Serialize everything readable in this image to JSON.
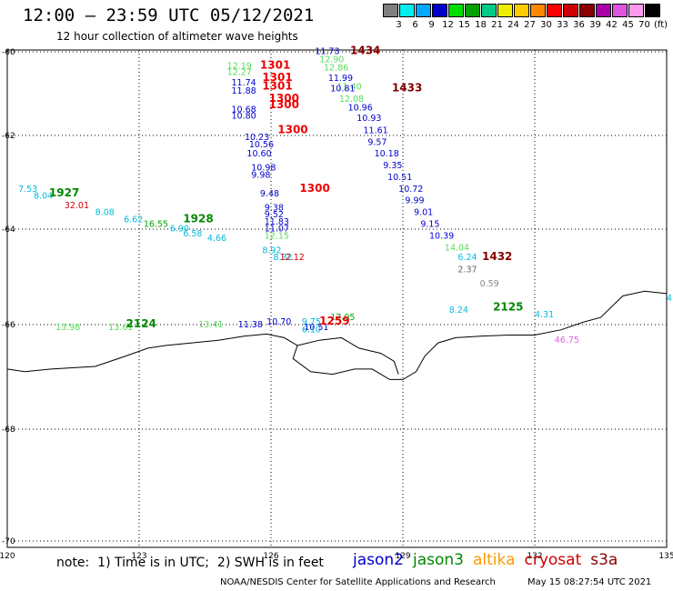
{
  "title": "12:00 – 23:59 UTC 05/12/2021",
  "subtitle": "12 hour collection of altimeter wave heights",
  "colorbar": {
    "labels": [
      "3",
      "6",
      "9",
      "12",
      "15",
      "18",
      "21",
      "24",
      "27",
      "30",
      "33",
      "36",
      "39",
      "42",
      "45",
      "70",
      "(ft)"
    ],
    "colors": [
      "#7f7f7f",
      "#00eeee",
      "#00a8ff",
      "#0000cc",
      "#00dd00",
      "#00a000",
      "#00cc88",
      "#eeee00",
      "#ffcc00",
      "#ff8800",
      "#ff0000",
      "#cc0000",
      "#880000",
      "#aa00aa",
      "#dd55dd",
      "#ff99ee",
      "#000000"
    ]
  },
  "note": "note:  1) Time is in UTC;  2) SWH is in feet",
  "legend": [
    {
      "label": "jason2",
      "color": "#0000cc"
    },
    {
      "label": "jason3",
      "color": "#008800"
    },
    {
      "label": "altika",
      "color": "#ff9900"
    },
    {
      "label": "cryosat",
      "color": "#cc0000"
    },
    {
      "label": "s3a",
      "color": "#880000"
    }
  ],
  "credit": "NOAA/NESDIS Center for Satellite Applications and Research",
  "generated": "May 15 08:27:54 UTC 2021",
  "chart_data": {
    "type": "scatter",
    "xlim": [
      120,
      135
    ],
    "ylim": [
      -70,
      -60
    ],
    "x_ticks": [
      "120",
      "123",
      "126",
      "129",
      "132",
      "135"
    ],
    "y_ticks": [
      "-60",
      "-62",
      "-64",
      "-66",
      "-68",
      "-70"
    ],
    "grid": true,
    "points": [
      {
        "lon": 127.0,
        "lat": -60.05,
        "v": "11.73",
        "c": "#0000cc"
      },
      {
        "lon": 127.1,
        "lat": -60.25,
        "v": "12.90",
        "c": "#55dd55"
      },
      {
        "lon": 127.2,
        "lat": -60.45,
        "v": "12.86",
        "c": "#55dd55"
      },
      {
        "lon": 127.3,
        "lat": -60.7,
        "v": "11.99",
        "c": "#0000cc"
      },
      {
        "lon": 127.5,
        "lat": -60.9,
        "v": "11.40",
        "c": "#55dd55"
      },
      {
        "lon": 127.35,
        "lat": -60.95,
        "v": "10.81",
        "c": "#0000cc"
      },
      {
        "lon": 127.55,
        "lat": -61.2,
        "v": "12.08",
        "c": "#55dd55"
      },
      {
        "lon": 127.75,
        "lat": -61.4,
        "v": "10.96",
        "c": "#0000cc"
      },
      {
        "lon": 127.95,
        "lat": -61.65,
        "v": "10.93",
        "c": "#0000cc"
      },
      {
        "lon": 128.1,
        "lat": -61.95,
        "v": "11.61",
        "c": "#0000cc"
      },
      {
        "lon": 128.2,
        "lat": -62.2,
        "v": "9.57",
        "c": "#0000cc"
      },
      {
        "lon": 128.35,
        "lat": -62.45,
        "v": "10.18",
        "c": "#0000cc"
      },
      {
        "lon": 128.55,
        "lat": -62.7,
        "v": "9.35",
        "c": "#0000cc"
      },
      {
        "lon": 128.65,
        "lat": -62.95,
        "v": "10.51",
        "c": "#0000cc"
      },
      {
        "lon": 128.9,
        "lat": -63.2,
        "v": "10.72",
        "c": "#0000cc"
      },
      {
        "lon": 129.05,
        "lat": -63.45,
        "v": "9.99",
        "c": "#0000cc"
      },
      {
        "lon": 129.25,
        "lat": -63.7,
        "v": "9.01",
        "c": "#0000cc"
      },
      {
        "lon": 129.4,
        "lat": -63.95,
        "v": "9.15",
        "c": "#0000cc"
      },
      {
        "lon": 129.6,
        "lat": -64.2,
        "v": "10.39",
        "c": "#0000cc"
      },
      {
        "lon": 129.95,
        "lat": -64.45,
        "v": "14.04",
        "c": "#55dd55"
      },
      {
        "lon": 130.25,
        "lat": -64.65,
        "v": "6.24",
        "c": "#00bbdd"
      },
      {
        "lon": 130.25,
        "lat": -64.9,
        "v": "2.37",
        "c": "#666666"
      },
      {
        "lon": 130.75,
        "lat": -65.2,
        "v": "0.59",
        "c": "#888888"
      },
      {
        "lon": 125.0,
        "lat": -60.4,
        "v": "12.19",
        "c": "#55dd55"
      },
      {
        "lon": 125.0,
        "lat": -60.55,
        "v": "12.27",
        "c": "#55dd55"
      },
      {
        "lon": 125.1,
        "lat": -60.8,
        "v": "11.74",
        "c": "#0000cc"
      },
      {
        "lon": 125.1,
        "lat": -61.0,
        "v": "11.88",
        "c": "#0000cc"
      },
      {
        "lon": 125.1,
        "lat": -61.45,
        "v": "10.68",
        "c": "#0000cc"
      },
      {
        "lon": 125.1,
        "lat": -61.6,
        "v": "10.80",
        "c": "#0000cc"
      },
      {
        "lon": 125.4,
        "lat": -62.1,
        "v": "10.23",
        "c": "#0000cc"
      },
      {
        "lon": 125.5,
        "lat": -62.25,
        "v": "10.56",
        "c": "#0000cc"
      },
      {
        "lon": 125.45,
        "lat": -62.45,
        "v": "10.60",
        "c": "#0000cc"
      },
      {
        "lon": 125.55,
        "lat": -62.75,
        "v": "10.98",
        "c": "#0000cc"
      },
      {
        "lon": 125.55,
        "lat": -62.9,
        "v": "9.98",
        "c": "#0000cc"
      },
      {
        "lon": 125.75,
        "lat": -63.3,
        "v": "9.48",
        "c": "#0000cc"
      },
      {
        "lon": 125.85,
        "lat": -63.6,
        "v": "9.38",
        "c": "#0000cc"
      },
      {
        "lon": 125.85,
        "lat": -63.75,
        "v": "9.52",
        "c": "#0000cc"
      },
      {
        "lon": 125.85,
        "lat": -63.9,
        "v": "11.83",
        "c": "#0000cc"
      },
      {
        "lon": 125.85,
        "lat": -64.05,
        "v": "11.07",
        "c": "#0000cc"
      },
      {
        "lon": 125.85,
        "lat": -64.2,
        "v": "12.15",
        "c": "#55dd55"
      },
      {
        "lon": 125.8,
        "lat": -64.5,
        "v": "8.92",
        "c": "#00bbdd"
      },
      {
        "lon": 126.05,
        "lat": -64.65,
        "v": "8.32",
        "c": "#00bbdd"
      },
      {
        "lon": 126.2,
        "lat": -64.65,
        "v": "12.12",
        "c": "#cc0000"
      },
      {
        "lon": 120.25,
        "lat": -63.2,
        "v": "7.53",
        "c": "#00bbdd"
      },
      {
        "lon": 120.6,
        "lat": -63.35,
        "v": "8.04",
        "c": "#00bbdd"
      },
      {
        "lon": 121.3,
        "lat": -63.55,
        "v": "32.01",
        "c": "#cc0000"
      },
      {
        "lon": 122.0,
        "lat": -63.7,
        "v": "8.08",
        "c": "#00bbdd"
      },
      {
        "lon": 122.65,
        "lat": -63.85,
        "v": "6.62",
        "c": "#00bbdd"
      },
      {
        "lon": 123.1,
        "lat": -63.95,
        "v": "16.55",
        "c": "#00aa00"
      },
      {
        "lon": 123.7,
        "lat": -64.05,
        "v": "6.90",
        "c": "#00bbdd"
      },
      {
        "lon": 124.0,
        "lat": -64.15,
        "v": "6.58",
        "c": "#00bbdd"
      },
      {
        "lon": 124.55,
        "lat": -64.25,
        "v": "4.66",
        "c": "#00bbdd"
      },
      {
        "lon": 121.1,
        "lat": -66.1,
        "v": "13.98",
        "c": "#55dd55"
      },
      {
        "lon": 122.3,
        "lat": -66.1,
        "v": "13.61",
        "c": "#55dd55"
      },
      {
        "lon": 124.35,
        "lat": -66.05,
        "v": "13.41",
        "c": "#55dd55"
      },
      {
        "lon": 125.25,
        "lat": -66.05,
        "v": "11.38",
        "c": "#0000cc"
      },
      {
        "lon": 125.9,
        "lat": -66.0,
        "v": "10.70",
        "c": "#0000cc"
      },
      {
        "lon": 126.7,
        "lat": -66.0,
        "v": "9.75",
        "c": "#00bbdd"
      },
      {
        "lon": 126.75,
        "lat": -66.1,
        "v": "10.51",
        "c": "#0000cc"
      },
      {
        "lon": 126.7,
        "lat": -66.15,
        "v": "6.10",
        "c": "#00bbdd"
      },
      {
        "lon": 127.35,
        "lat": -65.9,
        "v": "17.05",
        "c": "#00aa00"
      },
      {
        "lon": 130.05,
        "lat": -65.75,
        "v": "8.24",
        "c": "#00bbdd"
      },
      {
        "lon": 132.0,
        "lat": -65.85,
        "v": "4.31",
        "c": "#00bbdd"
      },
      {
        "lon": 132.45,
        "lat": -66.35,
        "v": "46.75",
        "c": "#dd66dd"
      },
      {
        "lon": 135.0,
        "lat": -65.5,
        "v": "4",
        "c": "#00bbdd"
      }
    ],
    "times": [
      {
        "lon": 127.8,
        "lat": -60.05,
        "v": "1434",
        "c": "#880000"
      },
      {
        "lon": 125.75,
        "lat": -60.4,
        "v": "1301",
        "c": "#ee0000"
      },
      {
        "lon": 125.8,
        "lat": -60.7,
        "v": "1301",
        "c": "#ee0000"
      },
      {
        "lon": 125.8,
        "lat": -60.9,
        "v": "1301",
        "c": "#ee0000"
      },
      {
        "lon": 128.75,
        "lat": -60.95,
        "v": "1433",
        "c": "#880000"
      },
      {
        "lon": 125.95,
        "lat": -61.2,
        "v": "1300",
        "c": "#ee0000"
      },
      {
        "lon": 125.95,
        "lat": -61.35,
        "v": "1300",
        "c": "#ee0000"
      },
      {
        "lon": 126.15,
        "lat": -61.95,
        "v": "1300",
        "c": "#ee0000"
      },
      {
        "lon": 126.65,
        "lat": -63.2,
        "v": "1300",
        "c": "#ee0000"
      },
      {
        "lon": 120.95,
        "lat": -63.3,
        "v": "1927",
        "c": "#008800"
      },
      {
        "lon": 124.0,
        "lat": -63.85,
        "v": "1928",
        "c": "#008800"
      },
      {
        "lon": 130.8,
        "lat": -64.65,
        "v": "1432",
        "c": "#880000"
      },
      {
        "lon": 131.05,
        "lat": -65.7,
        "v": "2125",
        "c": "#008800"
      },
      {
        "lon": 127.1,
        "lat": -66.0,
        "v": "1259",
        "c": "#ee0000"
      },
      {
        "lon": 122.7,
        "lat": -66.05,
        "v": "2124",
        "c": "#008800"
      }
    ]
  }
}
